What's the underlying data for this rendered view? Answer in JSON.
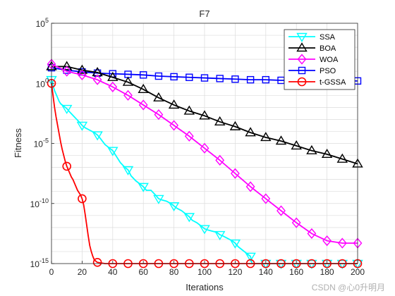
{
  "chart_data": {
    "type": "line",
    "title": "F7",
    "xlabel": "Iterations",
    "ylabel": "Fitness",
    "xlim": [
      0,
      200
    ],
    "ylim_log10": [
      -15,
      5
    ],
    "y_scale": "log",
    "xticks": [
      0,
      20,
      40,
      60,
      80,
      100,
      120,
      140,
      160,
      180,
      200
    ],
    "yticks_exp": [
      -15,
      -10,
      -5,
      0,
      5
    ],
    "ytick_base": "10",
    "grid": true,
    "legend_position": "top-right",
    "series": [
      {
        "name": "SSA",
        "color": "#00ffff",
        "marker": "triangle-down",
        "x": [
          0,
          1,
          2,
          3,
          4,
          5,
          6,
          8,
          10,
          12,
          15,
          18,
          20,
          22,
          25,
          28,
          30,
          32,
          35,
          38,
          40,
          42,
          45,
          48,
          50,
          52,
          55,
          58,
          60,
          62,
          65,
          68,
          70,
          72,
          75,
          78,
          80,
          82,
          85,
          88,
          90,
          92,
          95,
          98,
          100,
          102,
          105,
          108,
          110,
          112,
          115,
          118,
          120,
          122,
          125,
          128,
          130,
          131,
          135,
          140,
          150,
          160,
          170,
          180,
          190,
          200
        ],
        "logy": [
          0.3,
          -0.2,
          -0.6,
          -0.9,
          -1.2,
          -1.5,
          -1.7,
          -1.9,
          -2.1,
          -2.4,
          -2.8,
          -3.2,
          -3.5,
          -3.7,
          -3.9,
          -4.1,
          -4.3,
          -4.6,
          -5.1,
          -5.4,
          -5.6,
          -6.0,
          -6.6,
          -7.0,
          -7.2,
          -7.7,
          -8.1,
          -8.4,
          -8.6,
          -8.9,
          -8.9,
          -9.3,
          -9.6,
          -9.7,
          -9.8,
          -10.0,
          -10.2,
          -10.4,
          -10.6,
          -10.9,
          -11.1,
          -11.4,
          -11.6,
          -11.9,
          -12.1,
          -12.2,
          -12.3,
          -12.4,
          -12.6,
          -12.7,
          -12.9,
          -13.1,
          -13.3,
          -13.6,
          -13.9,
          -14.2,
          -14.4,
          -15,
          -15,
          -15,
          -15,
          -15,
          -15,
          -15,
          -15,
          -15
        ],
        "markers_x": [
          0,
          10,
          20,
          30,
          40,
          50,
          60,
          70,
          80,
          90,
          100,
          110,
          120,
          130,
          140,
          150,
          160,
          170,
          180,
          190,
          200
        ]
      },
      {
        "name": "BOA",
        "color": "#000000",
        "marker": "triangle-up",
        "x": [
          0,
          10,
          20,
          30,
          40,
          50,
          60,
          70,
          80,
          90,
          100,
          110,
          120,
          130,
          140,
          150,
          160,
          170,
          180,
          190,
          200
        ],
        "logy": [
          1.4,
          1.4,
          1.1,
          0.9,
          0.5,
          0.1,
          -0.5,
          -1.2,
          -1.8,
          -2.3,
          -2.7,
          -3.2,
          -3.6,
          -4.1,
          -4.5,
          -4.8,
          -5.2,
          -5.6,
          -5.9,
          -6.3,
          -6.7
        ],
        "markers_x": [
          0,
          10,
          20,
          30,
          40,
          50,
          60,
          70,
          80,
          90,
          100,
          110,
          120,
          130,
          140,
          150,
          160,
          170,
          180,
          190,
          200
        ]
      },
      {
        "name": "WOA",
        "color": "#ff00ff",
        "marker": "diamond",
        "x": [
          0,
          10,
          20,
          30,
          40,
          50,
          60,
          70,
          80,
          90,
          100,
          110,
          120,
          130,
          140,
          150,
          160,
          170,
          180,
          190,
          200
        ],
        "logy": [
          1.6,
          1.0,
          0.7,
          0.3,
          -0.3,
          -1.0,
          -1.8,
          -2.6,
          -3.5,
          -4.4,
          -5.4,
          -6.4,
          -7.5,
          -8.6,
          -9.6,
          -10.6,
          -11.6,
          -12.5,
          -13.1,
          -13.3,
          -13.3
        ],
        "markers_x": [
          0,
          10,
          20,
          30,
          40,
          50,
          60,
          70,
          80,
          90,
          100,
          110,
          120,
          130,
          140,
          150,
          160,
          170,
          180,
          190,
          200
        ]
      },
      {
        "name": "PSO",
        "color": "#0000ff",
        "marker": "square",
        "x": [
          0,
          10,
          20,
          30,
          40,
          50,
          60,
          70,
          80,
          90,
          100,
          110,
          120,
          130,
          140,
          150,
          160,
          170,
          180,
          190,
          200
        ],
        "logy": [
          1.3,
          1.1,
          0.95,
          0.85,
          0.8,
          0.75,
          0.7,
          0.6,
          0.55,
          0.5,
          0.45,
          0.4,
          0.35,
          0.3,
          0.3,
          0.25,
          0.25,
          0.2,
          0.2,
          0.2,
          0.2
        ],
        "markers_x": [
          0,
          10,
          20,
          30,
          40,
          50,
          60,
          70,
          80,
          90,
          100,
          110,
          120,
          130,
          140,
          150,
          160,
          170,
          180,
          190,
          200
        ]
      },
      {
        "name": "t-GSSA",
        "color": "#ff0000",
        "marker": "circle",
        "x": [
          0,
          1,
          2,
          3,
          4,
          5,
          6,
          7,
          8,
          9,
          10,
          11,
          12,
          13,
          14,
          15,
          16,
          17,
          18,
          19,
          20,
          21,
          22,
          23,
          24,
          25,
          26,
          27,
          28,
          30,
          35,
          40,
          60,
          80,
          100,
          120,
          140,
          160,
          180,
          200
        ],
        "logy": [
          0,
          -1,
          -2,
          -2.8,
          -3.5,
          -4.2,
          -4.9,
          -5.5,
          -6.0,
          -6.5,
          -6.9,
          -7.2,
          -7.5,
          -7.8,
          -8.0,
          -8.3,
          -8.6,
          -8.9,
          -9.1,
          -9.3,
          -9.6,
          -10.1,
          -10.9,
          -11.8,
          -12.7,
          -13.5,
          -14.0,
          -14.4,
          -14.7,
          -14.9,
          -15,
          -15,
          -15,
          -15,
          -15,
          -15,
          -15,
          -15,
          -15,
          -15
        ],
        "markers_x": [
          0,
          10,
          20,
          30,
          40,
          50,
          60,
          70,
          80,
          90,
          100,
          110,
          120,
          130,
          140,
          150,
          160,
          170,
          180,
          190,
          200
        ]
      }
    ]
  },
  "watermark": "CSDN @心0升明月"
}
